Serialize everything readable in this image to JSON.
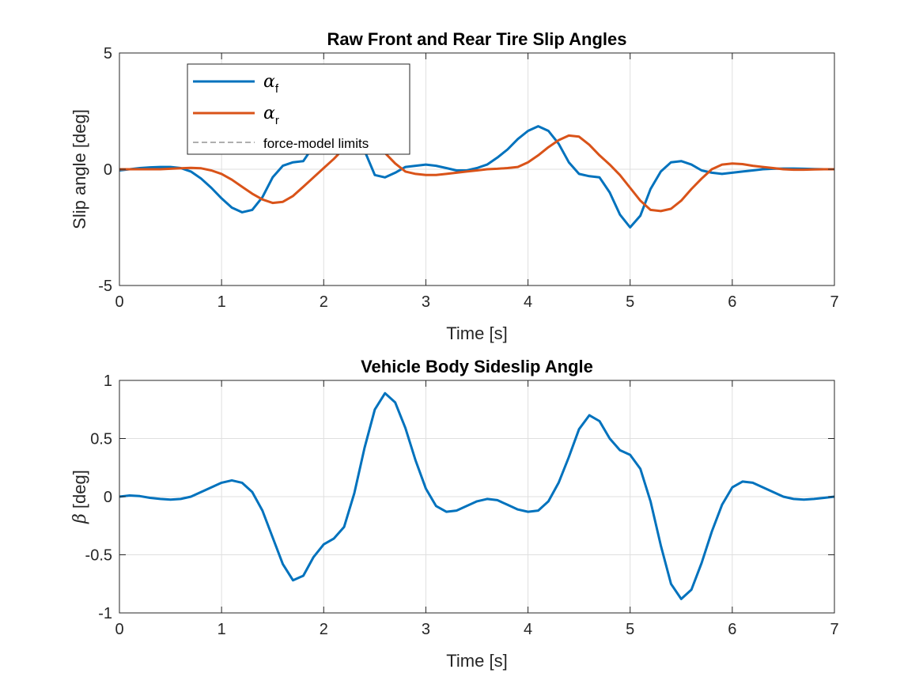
{
  "chart_data": [
    {
      "type": "line",
      "title": "Raw Front and Rear Tire Slip Angles",
      "xlabel": "Time [s]",
      "ylabel": "Slip angle [deg]",
      "xlim": [
        0,
        7
      ],
      "ylim": [
        -5,
        5
      ],
      "xticks": [
        "0",
        "1",
        "2",
        "3",
        "4",
        "5",
        "6",
        "7"
      ],
      "yticks": [
        "-5",
        "0",
        "5"
      ],
      "grid": true,
      "legend_position": "top-left",
      "series": [
        {
          "name_symbol": "α",
          "name_sub": "f",
          "color": "#0072BD",
          "x": [
            0,
            0.1,
            0.2,
            0.3,
            0.4,
            0.5,
            0.6,
            0.7,
            0.8,
            0.9,
            1.0,
            1.1,
            1.2,
            1.3,
            1.4,
            1.5,
            1.6,
            1.7,
            1.8,
            1.9,
            2.0,
            2.1,
            2.2,
            2.3,
            2.4,
            2.5,
            2.6,
            2.7,
            2.8,
            2.9,
            3.0,
            3.1,
            3.2,
            3.3,
            3.4,
            3.5,
            3.6,
            3.7,
            3.8,
            3.9,
            4.0,
            4.1,
            4.2,
            4.3,
            4.4,
            4.5,
            4.6,
            4.7,
            4.8,
            4.9,
            5.0,
            5.1,
            5.2,
            5.3,
            5.4,
            5.5,
            5.6,
            5.7,
            5.8,
            5.9,
            6.0,
            6.1,
            6.2,
            6.3,
            6.4,
            6.5,
            6.6,
            6.7,
            6.8,
            6.9,
            7.0
          ],
          "y": [
            -0.05,
            0.0,
            0.05,
            0.08,
            0.1,
            0.1,
            0.05,
            -0.1,
            -0.4,
            -0.8,
            -1.25,
            -1.65,
            -1.85,
            -1.75,
            -1.2,
            -0.35,
            0.15,
            0.3,
            0.35,
            1.0,
            1.8,
            2.2,
            2.2,
            1.8,
            0.8,
            -0.25,
            -0.35,
            -0.15,
            0.1,
            0.15,
            0.2,
            0.15,
            0.05,
            -0.05,
            -0.05,
            0.05,
            0.2,
            0.5,
            0.85,
            1.3,
            1.65,
            1.85,
            1.65,
            1.1,
            0.3,
            -0.2,
            -0.3,
            -0.35,
            -1.0,
            -1.95,
            -2.5,
            -2.0,
            -0.85,
            -0.1,
            0.3,
            0.35,
            0.2,
            -0.05,
            -0.15,
            -0.2,
            -0.15,
            -0.1,
            -0.05,
            0.0,
            0.02,
            0.03,
            0.03,
            0.02,
            0.01,
            0.0,
            0.0
          ]
        },
        {
          "name_symbol": "α",
          "name_sub": "r",
          "color": "#D95319",
          "x": [
            0,
            0.1,
            0.2,
            0.3,
            0.4,
            0.5,
            0.6,
            0.7,
            0.8,
            0.9,
            1.0,
            1.1,
            1.2,
            1.3,
            1.4,
            1.5,
            1.6,
            1.7,
            1.8,
            1.9,
            2.0,
            2.1,
            2.2,
            2.3,
            2.4,
            2.5,
            2.6,
            2.7,
            2.8,
            2.9,
            3.0,
            3.1,
            3.2,
            3.3,
            3.4,
            3.5,
            3.6,
            3.7,
            3.8,
            3.9,
            4.0,
            4.1,
            4.2,
            4.3,
            4.4,
            4.5,
            4.6,
            4.7,
            4.8,
            4.9,
            5.0,
            5.1,
            5.2,
            5.3,
            5.4,
            5.5,
            5.6,
            5.7,
            5.8,
            5.9,
            6.0,
            6.1,
            6.2,
            6.3,
            6.4,
            6.5,
            6.6,
            6.7,
            6.8,
            6.9,
            7.0
          ],
          "y": [
            0.0,
            0.0,
            0.0,
            0.0,
            0.0,
            0.02,
            0.04,
            0.06,
            0.04,
            -0.05,
            -0.2,
            -0.45,
            -0.75,
            -1.05,
            -1.3,
            -1.45,
            -1.4,
            -1.15,
            -0.75,
            -0.35,
            0.05,
            0.45,
            0.9,
            1.25,
            1.35,
            1.15,
            0.7,
            0.25,
            -0.1,
            -0.2,
            -0.25,
            -0.25,
            -0.2,
            -0.15,
            -0.1,
            -0.05,
            0.0,
            0.02,
            0.05,
            0.1,
            0.3,
            0.6,
            0.95,
            1.25,
            1.45,
            1.4,
            1.05,
            0.6,
            0.2,
            -0.25,
            -0.8,
            -1.35,
            -1.75,
            -1.8,
            -1.7,
            -1.35,
            -0.85,
            -0.4,
            0.0,
            0.2,
            0.25,
            0.22,
            0.15,
            0.1,
            0.05,
            0.0,
            -0.02,
            -0.02,
            -0.01,
            0.0,
            0.0
          ]
        }
      ],
      "limit_lines": {
        "label": "force-model limits",
        "color": "#7f7f7f",
        "style": "dashed"
      }
    },
    {
      "type": "line",
      "title": "Vehicle Body Sideslip Angle",
      "xlabel": "Time [s]",
      "ylabel_symbol": "β",
      "ylabel": "[deg]",
      "xlim": [
        0,
        7
      ],
      "ylim": [
        -1,
        1
      ],
      "xticks": [
        "0",
        "1",
        "2",
        "3",
        "4",
        "5",
        "6",
        "7"
      ],
      "yticks": [
        "-1",
        "-0.5",
        "0",
        "0.5",
        "1"
      ],
      "grid": true,
      "series": [
        {
          "color": "#0072BD",
          "x": [
            0,
            0.1,
            0.2,
            0.3,
            0.4,
            0.5,
            0.6,
            0.7,
            0.8,
            0.9,
            1.0,
            1.1,
            1.2,
            1.3,
            1.4,
            1.5,
            1.6,
            1.7,
            1.8,
            1.9,
            2.0,
            2.1,
            2.2,
            2.3,
            2.4,
            2.5,
            2.6,
            2.7,
            2.8,
            2.9,
            3.0,
            3.1,
            3.2,
            3.3,
            3.4,
            3.5,
            3.6,
            3.7,
            3.8,
            3.9,
            4.0,
            4.1,
            4.2,
            4.3,
            4.4,
            4.5,
            4.6,
            4.7,
            4.8,
            4.9,
            5.0,
            5.1,
            5.2,
            5.3,
            5.4,
            5.5,
            5.6,
            5.7,
            5.8,
            5.9,
            6.0,
            6.1,
            6.2,
            6.3,
            6.4,
            6.5,
            6.6,
            6.7,
            6.8,
            6.9,
            7.0
          ],
          "y": [
            0.0,
            0.01,
            0.005,
            -0.01,
            -0.02,
            -0.025,
            -0.02,
            0.0,
            0.04,
            0.08,
            0.12,
            0.14,
            0.12,
            0.04,
            -0.12,
            -0.35,
            -0.58,
            -0.72,
            -0.68,
            -0.52,
            -0.41,
            -0.36,
            -0.26,
            0.03,
            0.42,
            0.75,
            0.89,
            0.81,
            0.59,
            0.31,
            0.07,
            -0.08,
            -0.13,
            -0.12,
            -0.08,
            -0.04,
            -0.02,
            -0.03,
            -0.07,
            -0.11,
            -0.13,
            -0.12,
            -0.04,
            0.12,
            0.34,
            0.58,
            0.7,
            0.65,
            0.5,
            0.4,
            0.36,
            0.24,
            -0.04,
            -0.42,
            -0.75,
            -0.88,
            -0.8,
            -0.57,
            -0.3,
            -0.07,
            0.08,
            0.13,
            0.12,
            0.08,
            0.04,
            0.0,
            -0.02,
            -0.025,
            -0.02,
            -0.01,
            0.0
          ]
        }
      ]
    }
  ]
}
